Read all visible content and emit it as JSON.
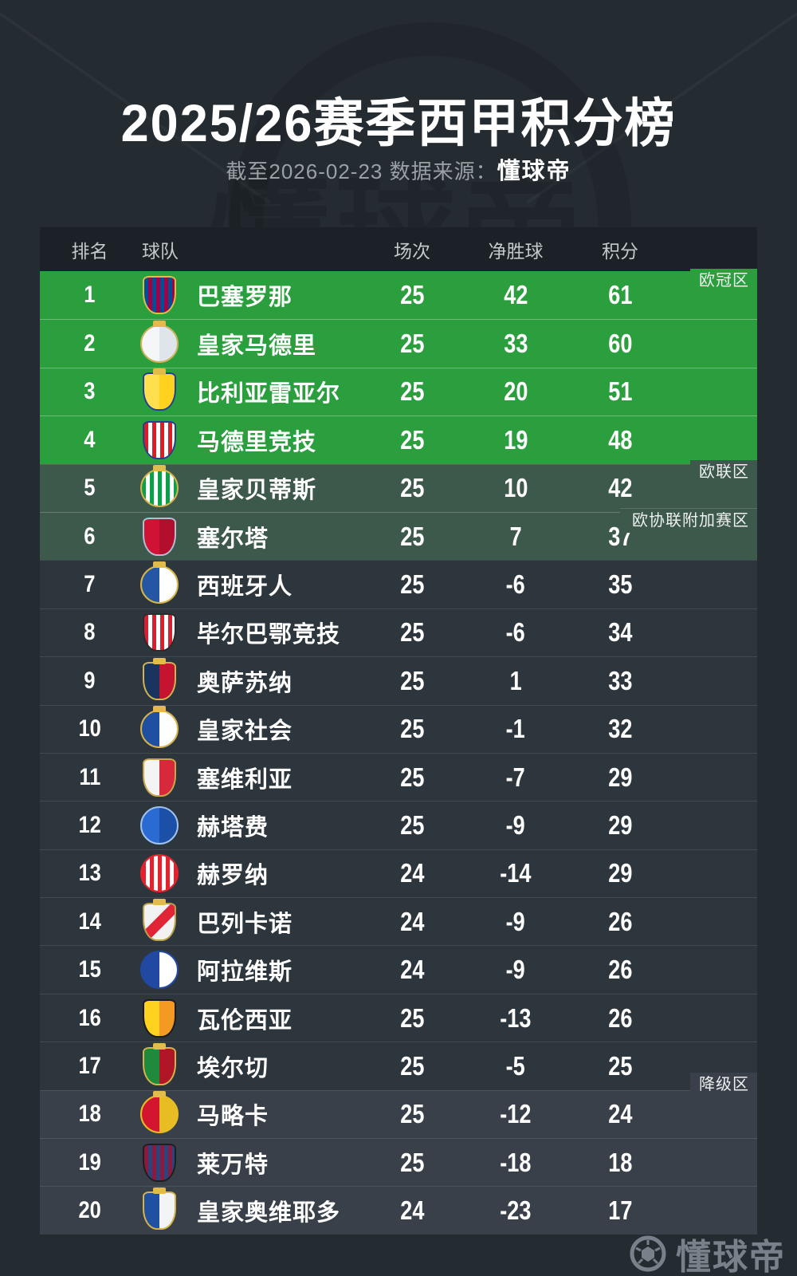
{
  "title": "2025/26赛季西甲积分榜",
  "subtitle": {
    "prefix": "截至2026-02-23 数据来源：",
    "source": "懂球帝"
  },
  "brand": {
    "name": "懂球帝",
    "icon": "football-icon"
  },
  "background_watermark": "懂球帝",
  "colors": {
    "page_bg": "#242b31",
    "header_bg": "#1b2126",
    "ucl_green": "#2b9e3e",
    "uel_green": "#3c594b",
    "row_dark": "#2d353d",
    "relegation_dark": "#394049",
    "crown_gold": "#e2bc4a",
    "brand_gray": "#78818a"
  },
  "table": {
    "headers": {
      "rank": "排名",
      "team": "球队",
      "played": "场次",
      "gd": "净胜球",
      "pts": "积分"
    },
    "zone_labels": {
      "ucl": "欧冠区",
      "uel": "欧联区",
      "uecl": "欧协联附加赛区",
      "rel": "降级区"
    },
    "rows": [
      {
        "rank": "1",
        "team": "巴塞罗那",
        "played": "25",
        "gd": "42",
        "pts": "61",
        "zone": "ucl",
        "logo": {
          "shape": "shield",
          "fill": "stripes",
          "c1": "#004d98",
          "c2": "#a50044",
          "rim": "#e2bc4a",
          "crown": false
        }
      },
      {
        "rank": "2",
        "team": "皇家马德里",
        "played": "25",
        "gd": "33",
        "pts": "60",
        "zone": "ucl",
        "logo": {
          "shape": "circle",
          "fill": "split",
          "c1": "#f4f6f7",
          "c2": "#dfe5ea",
          "rim": "#cbb35a",
          "crown": true
        }
      },
      {
        "rank": "3",
        "team": "比利亚雷亚尔",
        "played": "25",
        "gd": "20",
        "pts": "51",
        "zone": "ucl",
        "logo": {
          "shape": "shield",
          "fill": "split",
          "c1": "#ffdf4d",
          "c2": "#fed21f",
          "rim": "#20409a",
          "crown": true
        }
      },
      {
        "rank": "4",
        "team": "马德里竞技",
        "played": "25",
        "gd": "19",
        "pts": "48",
        "zone": "ucl",
        "logo": {
          "shape": "shield",
          "fill": "stripes",
          "c1": "#d81e2a",
          "c2": "#ffffff",
          "rim": "#27408b",
          "crown": false
        }
      },
      {
        "rank": "5",
        "team": "皇家贝蒂斯",
        "played": "25",
        "gd": "10",
        "pts": "42",
        "zone": "uel",
        "logo": {
          "shape": "circle",
          "fill": "stripes",
          "c1": "#0aa04a",
          "c2": "#ffffff",
          "rim": "#d4b24c",
          "crown": true
        }
      },
      {
        "rank": "6",
        "team": "塞尔塔",
        "played": "25",
        "gd": "7",
        "pts": "37",
        "zone": "uecl",
        "logo": {
          "shape": "shield",
          "fill": "split",
          "c1": "#d01335",
          "c2": "#b30f2c",
          "rim": "#aebfd6",
          "crown": false
        }
      },
      {
        "rank": "7",
        "team": "西班牙人",
        "played": "25",
        "gd": "-6",
        "pts": "35",
        "zone": "mid",
        "logo": {
          "shape": "circle",
          "fill": "split",
          "c1": "#2456a4",
          "c2": "#ffffff",
          "rim": "#d8b54a",
          "crown": true
        }
      },
      {
        "rank": "8",
        "team": "毕尔巴鄂竞技",
        "played": "25",
        "gd": "-6",
        "pts": "34",
        "zone": "mid",
        "logo": {
          "shape": "shield",
          "fill": "stripes",
          "c1": "#d42032",
          "c2": "#ffffff",
          "rim": "#2b2b2b",
          "crown": false
        }
      },
      {
        "rank": "9",
        "team": "奥萨苏纳",
        "played": "25",
        "gd": "1",
        "pts": "33",
        "zone": "mid",
        "logo": {
          "shape": "shield",
          "fill": "split",
          "c1": "#19355e",
          "c2": "#c41430",
          "rim": "#d4b24c",
          "crown": true
        }
      },
      {
        "rank": "10",
        "team": "皇家社会",
        "played": "25",
        "gd": "-1",
        "pts": "32",
        "zone": "mid",
        "logo": {
          "shape": "circle",
          "fill": "split",
          "c1": "#1f4fa0",
          "c2": "#ffffff",
          "rim": "#d4b24c",
          "crown": true
        }
      },
      {
        "rank": "11",
        "team": "塞维利亚",
        "played": "25",
        "gd": "-7",
        "pts": "29",
        "zone": "mid",
        "logo": {
          "shape": "shield",
          "fill": "split",
          "c1": "#f4f4f4",
          "c2": "#d8283c",
          "rim": "#caa64a",
          "crown": false
        }
      },
      {
        "rank": "12",
        "team": "赫塔费",
        "played": "25",
        "gd": "-9",
        "pts": "29",
        "zone": "mid",
        "logo": {
          "shape": "circle",
          "fill": "split",
          "c1": "#2a6bd2",
          "c2": "#1b4fa8",
          "rim": "#9fc2f0",
          "crown": false
        }
      },
      {
        "rank": "13",
        "team": "赫罗纳",
        "played": "24",
        "gd": "-14",
        "pts": "29",
        "zone": "mid",
        "logo": {
          "shape": "circle",
          "fill": "stripes",
          "c1": "#e3222f",
          "c2": "#ffffff",
          "rim": "#e3222f",
          "crown": false
        }
      },
      {
        "rank": "14",
        "team": "巴列卡诺",
        "played": "24",
        "gd": "-9",
        "pts": "26",
        "zone": "mid",
        "logo": {
          "shape": "shield",
          "fill": "diag",
          "c1": "#f2f2f2",
          "c2": "#e02537",
          "rim": "#b9a14a",
          "crown": true
        }
      },
      {
        "rank": "15",
        "team": "阿拉维斯",
        "played": "24",
        "gd": "-9",
        "pts": "26",
        "zone": "mid",
        "logo": {
          "shape": "circle",
          "fill": "split",
          "c1": "#2149a1",
          "c2": "#ffffff",
          "rim": "#2149a1",
          "crown": false
        }
      },
      {
        "rank": "16",
        "team": "瓦伦西亚",
        "played": "25",
        "gd": "-13",
        "pts": "26",
        "zone": "mid",
        "logo": {
          "shape": "shield",
          "fill": "split",
          "c1": "#fed21f",
          "c2": "#f49a22",
          "rim": "#1b1b1b",
          "crown": false
        }
      },
      {
        "rank": "17",
        "team": "埃尔切",
        "played": "25",
        "gd": "-5",
        "pts": "25",
        "zone": "mid",
        "logo": {
          "shape": "shield",
          "fill": "split",
          "c1": "#1d8a3c",
          "c2": "#b01726",
          "rim": "#d4b24c",
          "crown": true
        }
      },
      {
        "rank": "18",
        "team": "马略卡",
        "played": "25",
        "gd": "-12",
        "pts": "24",
        "zone": "rel",
        "logo": {
          "shape": "circle",
          "fill": "split",
          "c1": "#d3152f",
          "c2": "#e8bd23",
          "rim": "#e8bd23",
          "crown": true
        }
      },
      {
        "rank": "19",
        "team": "莱万特",
        "played": "25",
        "gd": "-18",
        "pts": "18",
        "zone": "rel",
        "logo": {
          "shape": "shield",
          "fill": "stripes",
          "c1": "#8c1a3f",
          "c2": "#28457e",
          "rim": "#1f1f1f",
          "crown": false
        }
      },
      {
        "rank": "20",
        "team": "皇家奥维耶多",
        "played": "24",
        "gd": "-23",
        "pts": "17",
        "zone": "rel",
        "logo": {
          "shape": "shield",
          "fill": "split",
          "c1": "#2050a0",
          "c2": "#f2f4f6",
          "rim": "#d4b24c",
          "crown": true
        }
      }
    ]
  }
}
